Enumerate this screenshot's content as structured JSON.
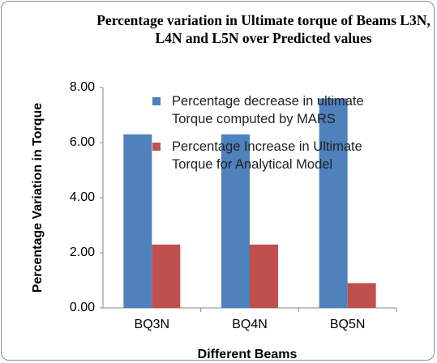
{
  "chart_data": {
    "type": "bar",
    "title": "Percentage variation in Ultimate torque of Beams L3N, L4N and L5N over Predicted values",
    "x_label": "Different Beams",
    "y_label": "Percentage Variation in Torque",
    "categories": [
      "BQ3N",
      "BQ4N",
      "BQ5N"
    ],
    "series": [
      {
        "name": "Percentage decrease in ultimate Torque computed by MARS",
        "color": "#4f81bd",
        "values": [
          6.3,
          6.3,
          7.6
        ]
      },
      {
        "name": "Percentage Increase in Ultimate Torque for Analytical Model",
        "color": "#c0504d",
        "values": [
          2.3,
          2.3,
          0.9
        ]
      }
    ],
    "ylim": [
      0,
      8
    ],
    "yticks": [
      {
        "value": 0,
        "label": "0.00"
      },
      {
        "value": 2,
        "label": "2.00"
      },
      {
        "value": 4,
        "label": "4.00"
      },
      {
        "value": 6,
        "label": "6.00"
      },
      {
        "value": 8,
        "label": "8.00"
      }
    ],
    "grid": false,
    "legend": "top-right"
  }
}
